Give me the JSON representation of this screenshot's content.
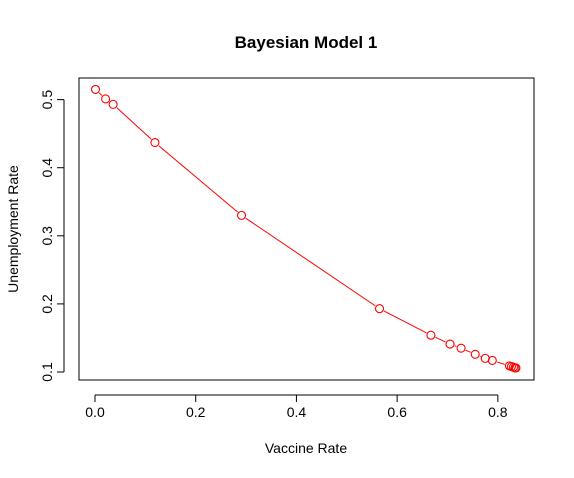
{
  "chart_data": {
    "type": "line",
    "title": "Bayesian Model 1",
    "xlabel": "Vaccine Rate",
    "ylabel": "Unemployment Rate",
    "xlim": [
      0.0,
      0.84
    ],
    "ylim": [
      0.1,
      0.52
    ],
    "xticks": [
      0.0,
      0.2,
      0.4,
      0.6,
      0.8
    ],
    "xtick_labels": [
      "0.0",
      "0.2",
      "0.4",
      "0.6",
      "0.8"
    ],
    "yticks": [
      0.1,
      0.2,
      0.3,
      0.4,
      0.5
    ],
    "ytick_labels": [
      "0.1",
      "0.2",
      "0.3",
      "0.4",
      "0.5"
    ],
    "grid": false,
    "series": [
      {
        "color": "#ff0000",
        "marker": "open-circle",
        "x": [
          0.001,
          0.021,
          0.036,
          0.119,
          0.291,
          0.565,
          0.667,
          0.705,
          0.727,
          0.755,
          0.775,
          0.789,
          0.823,
          0.827,
          0.831,
          0.834,
          0.836
        ],
        "y": [
          0.515,
          0.501,
          0.493,
          0.437,
          0.33,
          0.193,
          0.154,
          0.141,
          0.135,
          0.126,
          0.12,
          0.117,
          0.109,
          0.108,
          0.107,
          0.106,
          0.106
        ]
      }
    ]
  }
}
